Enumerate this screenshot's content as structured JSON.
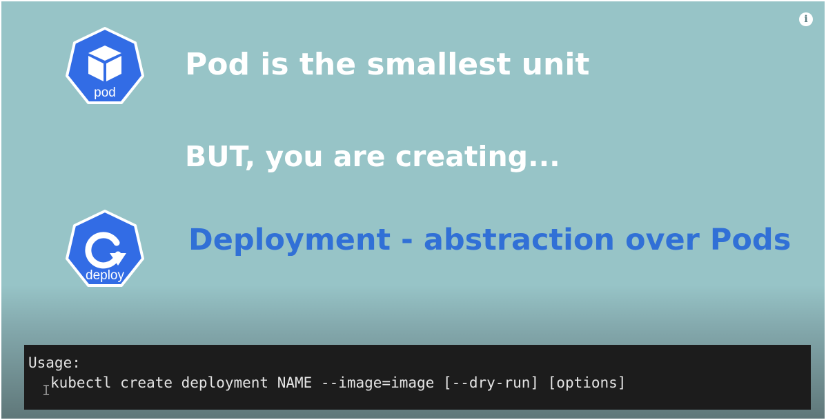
{
  "slide": {
    "pod_icon": {
      "icon": "kubernetes-pod-icon",
      "label": "pod"
    },
    "deploy_icon": {
      "icon": "kubernetes-deploy-icon",
      "label": "deploy"
    },
    "line1": "Pod is the smallest unit",
    "line2": "BUT, you are creating...",
    "line3": "Deployment - abstraction over Pods",
    "colors": {
      "background": "#97c4c7",
      "kubernetes_blue": "#326ce5",
      "highlight_text": "#3170d6",
      "text": "#ffffff"
    }
  },
  "info_button": {
    "icon": "info-icon",
    "glyph": "i"
  },
  "terminal": {
    "usage_label": "Usage:",
    "command": "kubectl create deployment NAME --image=image [--dry-run] [options]",
    "cursor": "I",
    "colors": {
      "background": "#1c1c1c",
      "text": "#e4e4e4"
    }
  }
}
